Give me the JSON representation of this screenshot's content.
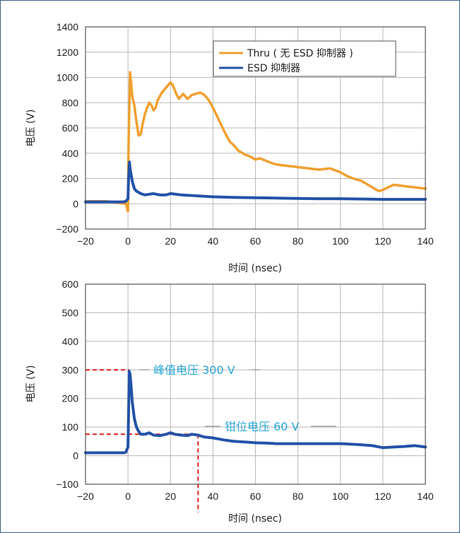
{
  "chart_data": [
    {
      "type": "line",
      "xlabel": "时间 (nsec)",
      "ylabel": "电压 (V)",
      "xlim": [
        -20,
        140
      ],
      "ylim": [
        -200,
        1400
      ],
      "grid": true,
      "legend_position": "top-right",
      "x_ticks": [
        "−20",
        "0",
        "20",
        "40",
        "60",
        "80",
        "100",
        "120",
        "140"
      ],
      "y_ticks": [
        "−200",
        "0",
        "200",
        "400",
        "600",
        "800",
        "1000",
        "1200",
        "1400"
      ],
      "series": [
        {
          "name": "Thru ( 无 ESD 抑制器 )",
          "color": "#f0a030",
          "x": [
            -20,
            -10,
            -1,
            0,
            0.3,
            1,
            1.5,
            2,
            3,
            4,
            5,
            6,
            7,
            8,
            9,
            10,
            11,
            12,
            13,
            14,
            15,
            16,
            17,
            18,
            19,
            20,
            21,
            22,
            23,
            24,
            25,
            26,
            28,
            30,
            32,
            34,
            36,
            38,
            40,
            42,
            44,
            46,
            48,
            50,
            52,
            55,
            58,
            60,
            62,
            65,
            68,
            70,
            75,
            80,
            85,
            90,
            95,
            100,
            103,
            106,
            110,
            113,
            116,
            118,
            120,
            125,
            130,
            135,
            140
          ],
          "y": [
            20,
            20,
            0,
            -60,
            500,
            1040,
            950,
            850,
            780,
            650,
            540,
            550,
            640,
            710,
            760,
            800,
            780,
            740,
            760,
            820,
            850,
            880,
            900,
            920,
            940,
            960,
            940,
            900,
            860,
            830,
            850,
            870,
            830,
            860,
            870,
            880,
            860,
            820,
            760,
            690,
            620,
            550,
            490,
            460,
            420,
            390,
            370,
            350,
            360,
            340,
            320,
            310,
            300,
            290,
            280,
            270,
            280,
            250,
            220,
            200,
            180,
            150,
            120,
            100,
            110,
            150,
            140,
            130,
            120
          ]
        },
        {
          "name": "ESD 抑制器",
          "color": "#2352a8",
          "x": [
            -20,
            -10,
            -2,
            -1,
            0,
            0.3,
            0.7,
            1,
            2,
            3,
            4,
            5,
            6,
            8,
            10,
            12,
            15,
            18,
            20,
            25,
            30,
            35,
            40,
            50,
            60,
            70,
            80,
            90,
            100,
            110,
            120,
            130,
            140
          ],
          "y": [
            15,
            15,
            15,
            20,
            40,
            200,
            330,
            280,
            180,
            120,
            100,
            90,
            80,
            70,
            75,
            80,
            70,
            70,
            80,
            70,
            65,
            60,
            55,
            50,
            48,
            45,
            42,
            40,
            40,
            38,
            35,
            35,
            35
          ]
        }
      ]
    },
    {
      "type": "line",
      "xlabel": "时间 (nsec)",
      "ylabel": "电压 (V)",
      "xlim": [
        -20,
        140
      ],
      "ylim": [
        -100,
        600
      ],
      "grid": true,
      "x_ticks": [
        "−20",
        "0",
        "20",
        "40",
        "60",
        "80",
        "100",
        "120",
        "140"
      ],
      "y_ticks": [
        "−100",
        "0",
        "100",
        "200",
        "300",
        "400",
        "500",
        "600"
      ],
      "annotations": [
        {
          "text": "峰值电压 300 V",
          "value": 300
        },
        {
          "text": "钳位电压 60 V",
          "value": 75,
          "x": 33
        }
      ],
      "series": [
        {
          "name": "ESD 抑制器",
          "color": "#2352a8",
          "x": [
            -20,
            -10,
            -2,
            -1,
            0,
            0.3,
            0.6,
            1,
            1.5,
            2,
            3,
            4,
            5,
            6,
            8,
            10,
            12,
            15,
            18,
            20,
            22,
            25,
            28,
            30,
            33,
            36,
            40,
            45,
            50,
            55,
            60,
            65,
            70,
            80,
            90,
            100,
            105,
            110,
            115,
            120,
            125,
            130,
            135,
            140
          ],
          "y": [
            10,
            10,
            10,
            12,
            30,
            150,
            295,
            285,
            240,
            190,
            130,
            100,
            85,
            75,
            75,
            80,
            72,
            70,
            75,
            80,
            75,
            72,
            70,
            75,
            72,
            65,
            62,
            55,
            50,
            48,
            45,
            44,
            42,
            42,
            42,
            42,
            40,
            38,
            35,
            28,
            30,
            32,
            35,
            30
          ]
        }
      ]
    }
  ]
}
